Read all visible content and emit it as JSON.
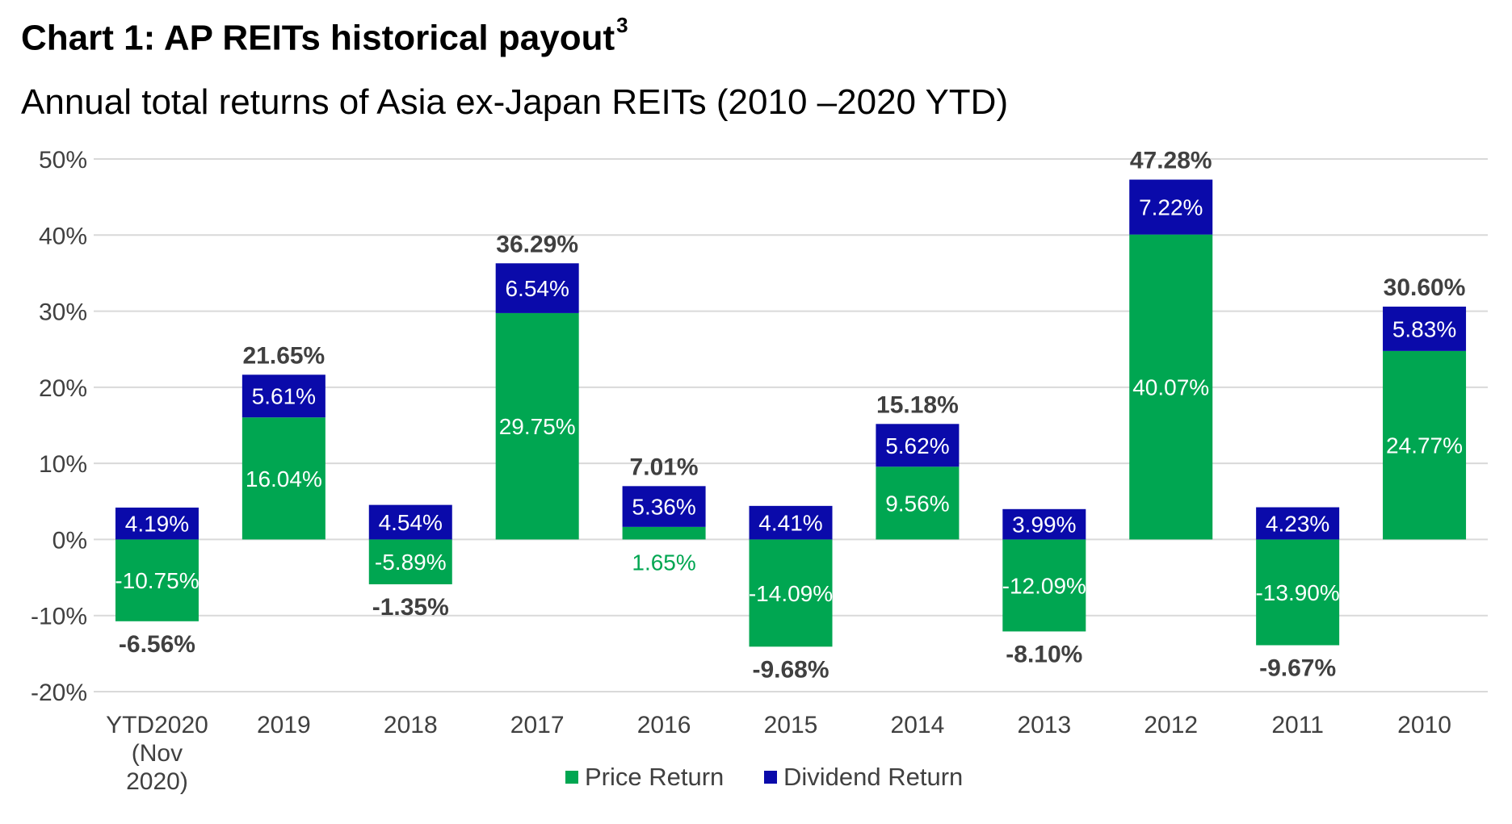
{
  "title": "Chart 1: AP REITs historical payout",
  "title_sup": "3",
  "subtitle": "Annual total returns of Asia ex-Japan REITs (2010 –2020 YTD)",
  "colors": {
    "price": "#00A651",
    "dividend": "#0A0AAA",
    "grid": "#D9D9D9",
    "text": "#404040"
  },
  "chart_data": {
    "type": "bar",
    "stacked": true,
    "categories": [
      [
        "YTD2020",
        "(Nov",
        "2020)"
      ],
      [
        "2019"
      ],
      [
        "2018"
      ],
      [
        "2017"
      ],
      [
        "2016"
      ],
      [
        "2015"
      ],
      [
        "2014"
      ],
      [
        "2013"
      ],
      [
        "2012"
      ],
      [
        "2011"
      ],
      [
        "2010"
      ]
    ],
    "series": [
      {
        "name": "Price Return",
        "values": [
          -10.75,
          16.04,
          -5.89,
          29.75,
          1.65,
          -14.09,
          9.56,
          -12.09,
          40.07,
          -13.9,
          24.77
        ],
        "labels": [
          "-10.75%",
          "16.04%",
          "-5.89%",
          "29.75%",
          "1.65%",
          "-14.09%",
          "9.56%",
          "-12.09%",
          "40.07%",
          "-13.90%",
          "24.77%"
        ]
      },
      {
        "name": "Dividend Return",
        "values": [
          4.19,
          5.61,
          4.54,
          6.54,
          5.36,
          4.41,
          5.62,
          3.99,
          7.22,
          4.23,
          5.83
        ],
        "labels": [
          "4.19%",
          "5.61%",
          "4.54%",
          "6.54%",
          "5.36%",
          "4.41%",
          "5.62%",
          "3.99%",
          "7.22%",
          "4.23%",
          "5.83%"
        ]
      }
    ],
    "totals": [
      -6.56,
      21.65,
      -1.35,
      36.29,
      7.01,
      -9.68,
      15.18,
      -8.1,
      47.28,
      -9.67,
      30.6
    ],
    "total_labels": [
      "-6.56%",
      "21.65%",
      "-1.35%",
      "36.29%",
      "7.01%",
      "-9.68%",
      "15.18%",
      "-8.10%",
      "47.28%",
      "-9.67%",
      "30.60%"
    ],
    "yticks": [
      50,
      40,
      30,
      20,
      10,
      0,
      -10,
      -20
    ],
    "ytick_labels": [
      "50%",
      "40%",
      "30%",
      "20%",
      "10%",
      "0%",
      "-10%",
      "-20%"
    ],
    "ylim": [
      -20,
      50
    ],
    "grid": true,
    "legend": {
      "placement": "bottom",
      "entries": [
        "Price Return",
        "Dividend Return"
      ]
    }
  }
}
